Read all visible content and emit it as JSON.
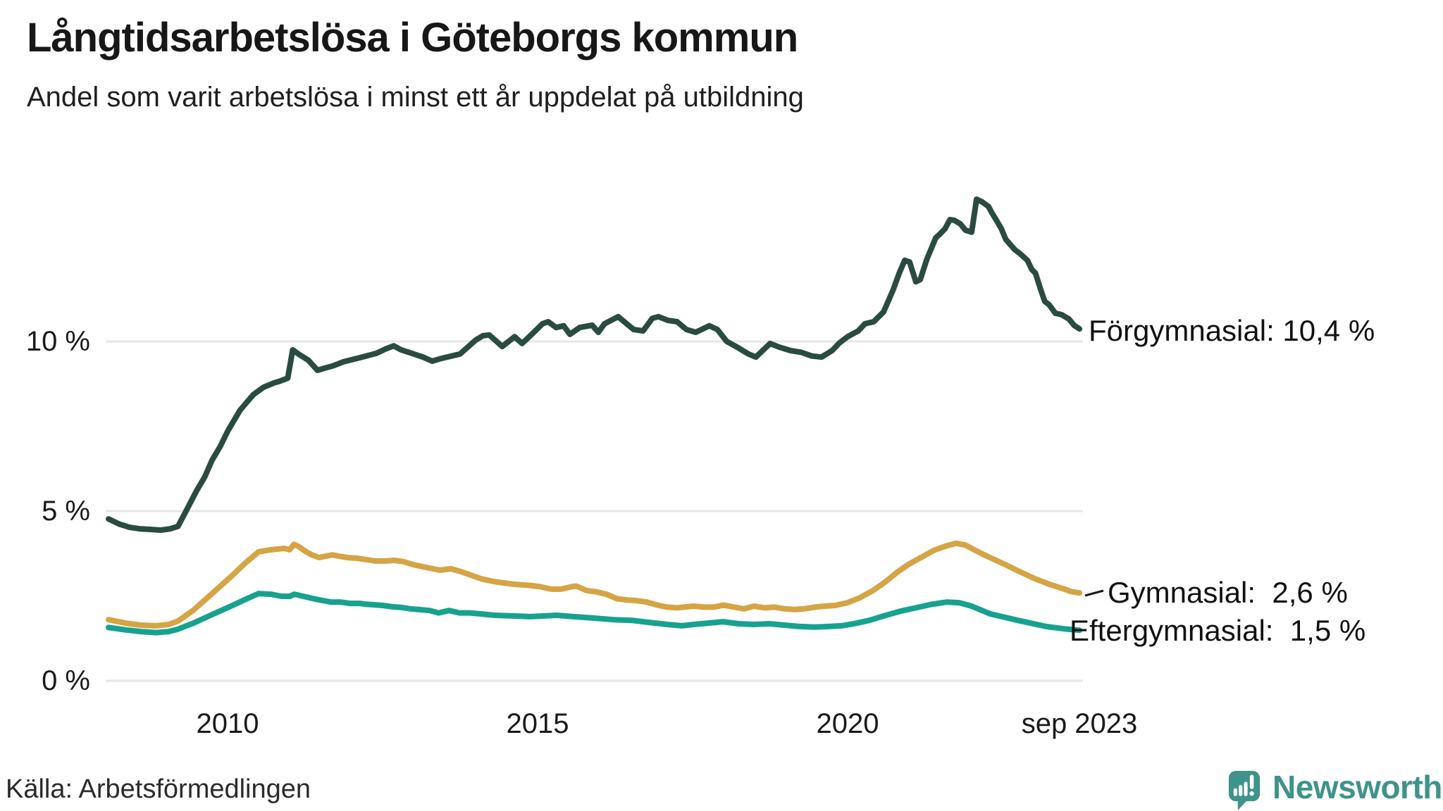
{
  "title": "Långtidsarbetslösa i Göteborgs kommun",
  "subtitle": "Andel som varit arbetslösa i minst ett år uppdelat på utbildning",
  "source": "Källa: Arbetsförmedlingen",
  "brand": {
    "name": "Newsworthy",
    "color": "#3E938B",
    "icon": "speech-bubble-bar-chart-icon"
  },
  "axes": {
    "y_ticks": [
      {
        "label": "10 %",
        "value": 10
      },
      {
        "label": "5 %",
        "value": 5
      },
      {
        "label": "0 %",
        "value": 0
      }
    ],
    "x_ticks": [
      {
        "label": "2010",
        "year": 2010
      },
      {
        "label": "2015",
        "year": 2015
      },
      {
        "label": "2020",
        "year": 2020
      },
      {
        "label": "sep 2023",
        "year": 2023.74
      }
    ]
  },
  "chart_data": {
    "type": "line",
    "title": "Långtidsarbetslösa i Göteborgs kommun",
    "subtitle": "Andel som varit arbetslösa i minst ett år uppdelat på utbildning",
    "xlabel": "",
    "ylabel": "",
    "x_unit": "year (monthly data)",
    "xlim": [
      2008.0,
      2023.78
    ],
    "ylim": [
      0,
      15
    ],
    "grid": "horizontal",
    "gridline_values": [
      0,
      5,
      10
    ],
    "gridline_color": "#E6E6E6",
    "legend_position": "end-of-line labels, right side",
    "series": [
      {
        "name": "Förgymnasial",
        "end_label": "Förgymnasial: 10,4 %",
        "last_value": "10,4 %",
        "color": "#2A4B42",
        "points": [
          [
            2008.08,
            4.77
          ],
          [
            2008.25,
            4.62
          ],
          [
            2008.42,
            4.52
          ],
          [
            2008.58,
            4.48
          ],
          [
            2008.75,
            4.46
          ],
          [
            2008.92,
            4.44
          ],
          [
            2009.08,
            4.48
          ],
          [
            2009.2,
            4.55
          ],
          [
            2009.33,
            5.0
          ],
          [
            2009.5,
            5.6
          ],
          [
            2009.63,
            6.0
          ],
          [
            2009.75,
            6.5
          ],
          [
            2009.88,
            6.9
          ],
          [
            2010.0,
            7.35
          ],
          [
            2010.2,
            7.97
          ],
          [
            2010.33,
            8.25
          ],
          [
            2010.42,
            8.44
          ],
          [
            2010.58,
            8.65
          ],
          [
            2010.75,
            8.78
          ],
          [
            2010.83,
            8.82
          ],
          [
            2010.97,
            8.92
          ],
          [
            2011.05,
            9.75
          ],
          [
            2011.15,
            9.62
          ],
          [
            2011.3,
            9.45
          ],
          [
            2011.45,
            9.15
          ],
          [
            2011.58,
            9.22
          ],
          [
            2011.7,
            9.28
          ],
          [
            2011.87,
            9.4
          ],
          [
            2012.0,
            9.46
          ],
          [
            2012.17,
            9.54
          ],
          [
            2012.4,
            9.65
          ],
          [
            2012.55,
            9.78
          ],
          [
            2012.68,
            9.87
          ],
          [
            2012.8,
            9.75
          ],
          [
            2012.92,
            9.68
          ],
          [
            2013.15,
            9.54
          ],
          [
            2013.3,
            9.42
          ],
          [
            2013.45,
            9.5
          ],
          [
            2013.75,
            9.63
          ],
          [
            2014.0,
            10.04
          ],
          [
            2014.12,
            10.17
          ],
          [
            2014.22,
            10.19
          ],
          [
            2014.43,
            9.85
          ],
          [
            2014.63,
            10.14
          ],
          [
            2014.75,
            9.94
          ],
          [
            2014.9,
            10.2
          ],
          [
            2015.08,
            10.52
          ],
          [
            2015.17,
            10.58
          ],
          [
            2015.3,
            10.41
          ],
          [
            2015.42,
            10.46
          ],
          [
            2015.52,
            10.21
          ],
          [
            2015.68,
            10.41
          ],
          [
            2015.88,
            10.48
          ],
          [
            2015.98,
            10.27
          ],
          [
            2016.08,
            10.52
          ],
          [
            2016.3,
            10.73
          ],
          [
            2016.45,
            10.5
          ],
          [
            2016.55,
            10.35
          ],
          [
            2016.7,
            10.31
          ],
          [
            2016.85,
            10.68
          ],
          [
            2016.95,
            10.73
          ],
          [
            2017.1,
            10.62
          ],
          [
            2017.25,
            10.58
          ],
          [
            2017.4,
            10.35
          ],
          [
            2017.55,
            10.27
          ],
          [
            2017.77,
            10.46
          ],
          [
            2017.9,
            10.35
          ],
          [
            2018.05,
            10.0
          ],
          [
            2018.2,
            9.85
          ],
          [
            2018.4,
            9.63
          ],
          [
            2018.52,
            9.54
          ],
          [
            2018.75,
            9.94
          ],
          [
            2018.9,
            9.83
          ],
          [
            2019.08,
            9.73
          ],
          [
            2019.25,
            9.68
          ],
          [
            2019.42,
            9.57
          ],
          [
            2019.58,
            9.54
          ],
          [
            2019.75,
            9.73
          ],
          [
            2019.87,
            9.96
          ],
          [
            2020.0,
            10.14
          ],
          [
            2020.17,
            10.31
          ],
          [
            2020.28,
            10.52
          ],
          [
            2020.42,
            10.58
          ],
          [
            2020.58,
            10.87
          ],
          [
            2020.73,
            11.5
          ],
          [
            2020.83,
            12.0
          ],
          [
            2020.92,
            12.39
          ],
          [
            2021.0,
            12.34
          ],
          [
            2021.1,
            11.76
          ],
          [
            2021.17,
            11.82
          ],
          [
            2021.28,
            12.43
          ],
          [
            2021.42,
            13.05
          ],
          [
            2021.48,
            13.15
          ],
          [
            2021.57,
            13.32
          ],
          [
            2021.65,
            13.59
          ],
          [
            2021.72,
            13.57
          ],
          [
            2021.82,
            13.46
          ],
          [
            2021.9,
            13.28
          ],
          [
            2022.0,
            13.22
          ],
          [
            2022.08,
            14.19
          ],
          [
            2022.17,
            14.11
          ],
          [
            2022.27,
            13.98
          ],
          [
            2022.33,
            13.78
          ],
          [
            2022.4,
            13.57
          ],
          [
            2022.48,
            13.32
          ],
          [
            2022.55,
            13.01
          ],
          [
            2022.62,
            12.86
          ],
          [
            2022.7,
            12.7
          ],
          [
            2022.78,
            12.59
          ],
          [
            2022.9,
            12.39
          ],
          [
            2022.97,
            12.12
          ],
          [
            2023.03,
            12.01
          ],
          [
            2023.12,
            11.49
          ],
          [
            2023.18,
            11.18
          ],
          [
            2023.25,
            11.08
          ],
          [
            2023.35,
            10.83
          ],
          [
            2023.45,
            10.79
          ],
          [
            2023.57,
            10.66
          ],
          [
            2023.65,
            10.48
          ],
          [
            2023.74,
            10.37
          ]
        ]
      },
      {
        "name": "Gymnasial",
        "end_label": "Gymnasial:  2,6 %",
        "last_value": "2,6 %",
        "color": "#D5A445",
        "points": [
          [
            2008.08,
            1.8
          ],
          [
            2008.35,
            1.7
          ],
          [
            2008.6,
            1.64
          ],
          [
            2008.85,
            1.62
          ],
          [
            2009.05,
            1.66
          ],
          [
            2009.2,
            1.76
          ],
          [
            2009.45,
            2.08
          ],
          [
            2009.75,
            2.57
          ],
          [
            2010.08,
            3.11
          ],
          [
            2010.28,
            3.46
          ],
          [
            2010.5,
            3.8
          ],
          [
            2010.7,
            3.86
          ],
          [
            2010.91,
            3.9
          ],
          [
            2011.0,
            3.86
          ],
          [
            2011.07,
            4.02
          ],
          [
            2011.16,
            3.94
          ],
          [
            2011.25,
            3.82
          ],
          [
            2011.36,
            3.71
          ],
          [
            2011.48,
            3.63
          ],
          [
            2011.58,
            3.67
          ],
          [
            2011.69,
            3.71
          ],
          [
            2011.8,
            3.67
          ],
          [
            2011.93,
            3.63
          ],
          [
            2012.09,
            3.61
          ],
          [
            2012.24,
            3.57
          ],
          [
            2012.39,
            3.53
          ],
          [
            2012.55,
            3.53
          ],
          [
            2012.69,
            3.55
          ],
          [
            2012.84,
            3.51
          ],
          [
            2013.0,
            3.42
          ],
          [
            2013.26,
            3.32
          ],
          [
            2013.43,
            3.26
          ],
          [
            2013.6,
            3.3
          ],
          [
            2013.76,
            3.22
          ],
          [
            2013.93,
            3.11
          ],
          [
            2014.1,
            3.0
          ],
          [
            2014.31,
            2.92
          ],
          [
            2014.59,
            2.85
          ],
          [
            2014.88,
            2.81
          ],
          [
            2015.05,
            2.77
          ],
          [
            2015.22,
            2.7
          ],
          [
            2015.38,
            2.7
          ],
          [
            2015.54,
            2.77
          ],
          [
            2015.62,
            2.79
          ],
          [
            2015.79,
            2.66
          ],
          [
            2015.95,
            2.62
          ],
          [
            2016.11,
            2.55
          ],
          [
            2016.28,
            2.42
          ],
          [
            2016.44,
            2.38
          ],
          [
            2016.6,
            2.36
          ],
          [
            2016.76,
            2.32
          ],
          [
            2016.93,
            2.23
          ],
          [
            2017.09,
            2.17
          ],
          [
            2017.25,
            2.15
          ],
          [
            2017.52,
            2.2
          ],
          [
            2017.68,
            2.17
          ],
          [
            2017.84,
            2.17
          ],
          [
            2018.0,
            2.23
          ],
          [
            2018.17,
            2.17
          ],
          [
            2018.33,
            2.12
          ],
          [
            2018.49,
            2.2
          ],
          [
            2018.66,
            2.15
          ],
          [
            2018.82,
            2.17
          ],
          [
            2018.98,
            2.12
          ],
          [
            2019.14,
            2.1
          ],
          [
            2019.3,
            2.12
          ],
          [
            2019.47,
            2.17
          ],
          [
            2019.63,
            2.2
          ],
          [
            2019.8,
            2.22
          ],
          [
            2020.0,
            2.3
          ],
          [
            2020.2,
            2.45
          ],
          [
            2020.4,
            2.65
          ],
          [
            2020.6,
            2.9
          ],
          [
            2020.8,
            3.2
          ],
          [
            2021.0,
            3.45
          ],
          [
            2021.2,
            3.65
          ],
          [
            2021.4,
            3.85
          ],
          [
            2021.6,
            3.98
          ],
          [
            2021.75,
            4.05
          ],
          [
            2021.9,
            4.0
          ],
          [
            2022.05,
            3.85
          ],
          [
            2022.25,
            3.67
          ],
          [
            2022.5,
            3.46
          ],
          [
            2022.77,
            3.22
          ],
          [
            2023.03,
            3.0
          ],
          [
            2023.26,
            2.84
          ],
          [
            2023.5,
            2.7
          ],
          [
            2023.6,
            2.63
          ],
          [
            2023.74,
            2.59
          ]
        ]
      },
      {
        "name": "Eftergymnasial",
        "end_label": "Eftergymnasial:  1,5 %",
        "last_value": "1,5 %",
        "color": "#17A28F",
        "points": [
          [
            2008.08,
            1.57
          ],
          [
            2008.35,
            1.5
          ],
          [
            2008.6,
            1.45
          ],
          [
            2008.85,
            1.42
          ],
          [
            2009.05,
            1.45
          ],
          [
            2009.2,
            1.52
          ],
          [
            2009.45,
            1.7
          ],
          [
            2009.75,
            1.95
          ],
          [
            2010.08,
            2.22
          ],
          [
            2010.28,
            2.39
          ],
          [
            2010.5,
            2.57
          ],
          [
            2010.7,
            2.55
          ],
          [
            2010.87,
            2.49
          ],
          [
            2011.0,
            2.49
          ],
          [
            2011.08,
            2.55
          ],
          [
            2011.22,
            2.49
          ],
          [
            2011.36,
            2.43
          ],
          [
            2011.52,
            2.37
          ],
          [
            2011.67,
            2.32
          ],
          [
            2011.82,
            2.32
          ],
          [
            2011.98,
            2.28
          ],
          [
            2012.13,
            2.28
          ],
          [
            2012.21,
            2.26
          ],
          [
            2012.35,
            2.24
          ],
          [
            2012.5,
            2.22
          ],
          [
            2012.66,
            2.18
          ],
          [
            2012.81,
            2.16
          ],
          [
            2012.95,
            2.12
          ],
          [
            2013.26,
            2.07
          ],
          [
            2013.4,
            2.0
          ],
          [
            2013.57,
            2.07
          ],
          [
            2013.74,
            2.0
          ],
          [
            2013.91,
            2.0
          ],
          [
            2014.08,
            1.97
          ],
          [
            2014.31,
            1.93
          ],
          [
            2014.59,
            1.91
          ],
          [
            2014.88,
            1.89
          ],
          [
            2015.11,
            1.91
          ],
          [
            2015.31,
            1.93
          ],
          [
            2015.57,
            1.89
          ],
          [
            2015.88,
            1.85
          ],
          [
            2016.22,
            1.8
          ],
          [
            2016.52,
            1.78
          ],
          [
            2016.8,
            1.72
          ],
          [
            2017.09,
            1.66
          ],
          [
            2017.33,
            1.62
          ],
          [
            2017.52,
            1.66
          ],
          [
            2017.75,
            1.7
          ],
          [
            2017.99,
            1.74
          ],
          [
            2018.24,
            1.68
          ],
          [
            2018.49,
            1.66
          ],
          [
            2018.74,
            1.68
          ],
          [
            2018.98,
            1.64
          ],
          [
            2019.22,
            1.6
          ],
          [
            2019.46,
            1.58
          ],
          [
            2019.7,
            1.6
          ],
          [
            2019.9,
            1.62
          ],
          [
            2020.1,
            1.68
          ],
          [
            2020.35,
            1.78
          ],
          [
            2020.6,
            1.92
          ],
          [
            2020.85,
            2.05
          ],
          [
            2021.1,
            2.15
          ],
          [
            2021.35,
            2.25
          ],
          [
            2021.6,
            2.32
          ],
          [
            2021.8,
            2.3
          ],
          [
            2022.0,
            2.2
          ],
          [
            2022.3,
            1.97
          ],
          [
            2022.77,
            1.77
          ],
          [
            2023.2,
            1.6
          ],
          [
            2023.5,
            1.53
          ],
          [
            2023.74,
            1.49
          ]
        ]
      }
    ]
  }
}
